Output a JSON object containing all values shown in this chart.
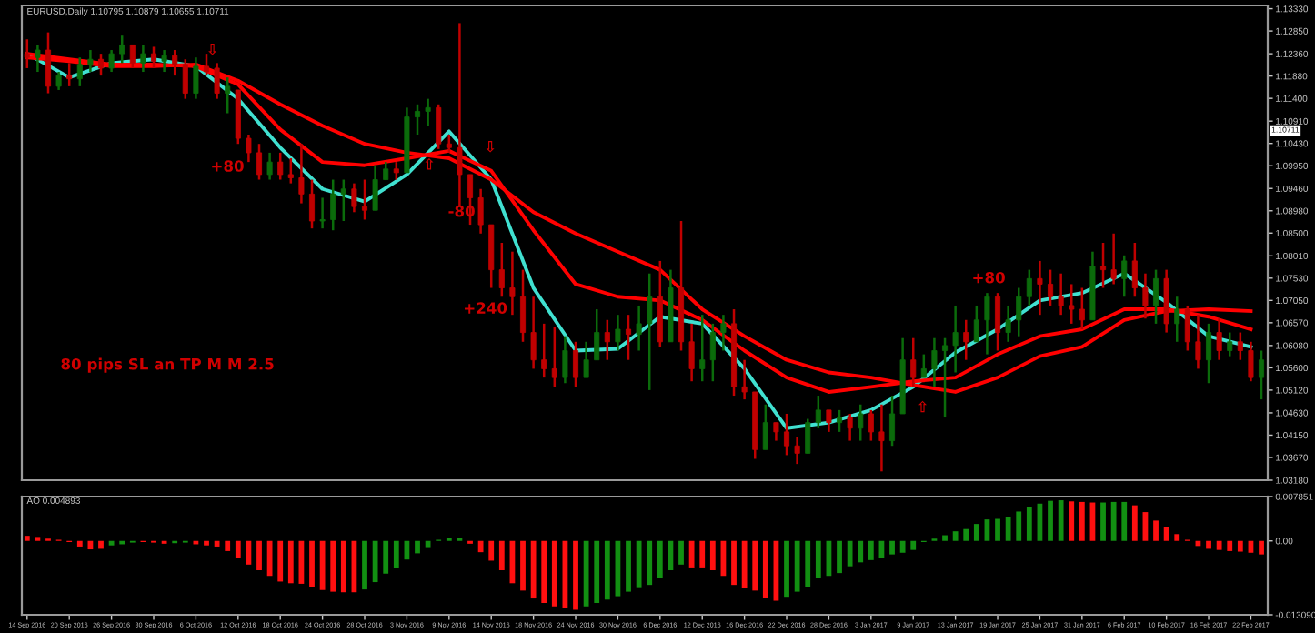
{
  "chart_data": [
    {
      "type": "candlestick",
      "title": "EURUSD,Daily 1.10795 1.10879 1.10655 1.10711",
      "categories": [
        "14 Sep 2016",
        null,
        null,
        null,
        "20 Sep 2016",
        null,
        null,
        null,
        "26 Sep 2016",
        null,
        null,
        null,
        "30 Sep 2016",
        null,
        null,
        null,
        "6 Oct 2016",
        null,
        null,
        null,
        "12 Oct 2016",
        null,
        null,
        null,
        "18 Oct 2016",
        null,
        null,
        null,
        "24 Oct 2016",
        null,
        null,
        null,
        "28 Oct 2016",
        null,
        null,
        null,
        "3 Nov 2016",
        null,
        null,
        null,
        "9 Nov 2016",
        null,
        null,
        null,
        "14 Nov 2016",
        null,
        null,
        null,
        "18 Nov 2016",
        null,
        null,
        null,
        "24 Nov 2016",
        null,
        null,
        null,
        "30 Nov 2016",
        null,
        null,
        null,
        "6 Dec 2016",
        null,
        null,
        null,
        "12 Dec 2016",
        null,
        null,
        null,
        "16 Dec 2016",
        null,
        null,
        null,
        "22 Dec 2016",
        null,
        null,
        null,
        "28 Dec 2016",
        null,
        null,
        null,
        "3 Jan 2017",
        null,
        null,
        null,
        "9 Jan 2017",
        null,
        null,
        null,
        "13 Jan 2017",
        null,
        null,
        null,
        "19 Jan 2017",
        null,
        null,
        null,
        "25 Jan 2017",
        null,
        null,
        null,
        "31 Jan 2017",
        null,
        null,
        null,
        "6 Feb 2017",
        null,
        null,
        null,
        "10 Feb 2017",
        null,
        null,
        null,
        "16 Feb 2017",
        null,
        null,
        null,
        "22 Feb 2017",
        null
      ],
      "ohlc": [
        [
          1.1236,
          1.1267,
          1.1205,
          1.1228
        ],
        [
          1.1228,
          1.1255,
          1.1197,
          1.1244
        ],
        [
          1.1244,
          1.1282,
          1.1151,
          1.1166
        ],
        [
          1.1166,
          1.1197,
          1.1158,
          1.1189
        ],
        [
          1.1189,
          1.1216,
          1.1166,
          1.1182
        ],
        [
          1.1182,
          1.1228,
          1.1166,
          1.1213
        ],
        [
          1.1213,
          1.1244,
          1.1197,
          1.1224
        ],
        [
          1.1224,
          1.1236,
          1.1189,
          1.1205
        ],
        [
          1.1205,
          1.1244,
          1.1197,
          1.1236
        ],
        [
          1.1236,
          1.1275,
          1.1216,
          1.1255
        ],
        [
          1.1255,
          1.1255,
          1.1205,
          1.1216
        ],
        [
          1.1216,
          1.1255,
          1.1197,
          1.1236
        ],
        [
          1.1236,
          1.1251,
          1.1205,
          1.122
        ],
        [
          1.122,
          1.1244,
          1.1197,
          1.1232
        ],
        [
          1.1232,
          1.1244,
          1.1189,
          1.1213
        ],
        [
          1.1213,
          1.1224,
          1.1139,
          1.1151
        ],
        [
          1.1151,
          1.1228,
          1.1139,
          1.1209
        ],
        [
          1.1209,
          1.1236,
          1.1189,
          1.1197
        ],
        [
          1.1205,
          1.1216,
          1.1139,
          1.1151
        ],
        [
          1.1151,
          1.1185,
          1.1108,
          1.1166
        ],
        [
          1.1158,
          1.1158,
          1.1042,
          1.1054
        ],
        [
          1.1054,
          1.1062,
          1.1003,
          1.1023
        ],
        [
          1.1023,
          1.1042,
          1.0965,
          1.0976
        ],
        [
          1.0976,
          1.1023,
          1.0965,
          1.1003
        ],
        [
          1.1003,
          1.1023,
          1.0965,
          1.0976
        ],
        [
          1.0976,
          1.1011,
          1.0957,
          1.0969
        ],
        [
          1.0969,
          1.1042,
          1.0914,
          1.0934
        ],
        [
          1.0934,
          1.0965,
          1.086,
          1.0876
        ],
        [
          1.0876,
          1.0926,
          1.086,
          1.0879
        ],
        [
          1.0879,
          1.0965,
          1.0856,
          1.0934
        ],
        [
          1.0934,
          1.0965,
          1.0876,
          1.0945
        ],
        [
          1.0945,
          1.0957,
          1.0895,
          1.0907
        ],
        [
          1.0907,
          1.0965,
          1.0879,
          1.0899
        ],
        [
          1.0899,
          1.0996,
          1.0899,
          1.0965
        ],
        [
          1.0965,
          1.1003,
          1.0965,
          1.0988
        ],
        [
          1.0988,
          1.1003,
          1.0965,
          1.098
        ],
        [
          1.098,
          1.112,
          1.098,
          1.11
        ],
        [
          1.11,
          1.1127,
          1.1062,
          1.1112
        ],
        [
          1.1112,
          1.1139,
          1.1081,
          1.112
        ],
        [
          1.112,
          1.1127,
          1.1031,
          1.1042
        ],
        [
          1.1042,
          1.1062,
          1.1023,
          1.1034
        ],
        [
          1.1034,
          1.1302,
          1.0907,
          1.0976
        ],
        [
          1.0976,
          1.0976,
          1.0868,
          1.0926
        ],
        [
          1.0926,
          1.0945,
          1.0849,
          1.0868
        ],
        [
          1.0868,
          1.0868,
          1.0732,
          1.0771
        ],
        [
          1.0771,
          1.0829,
          1.0713,
          1.0732
        ],
        [
          1.0732,
          1.081,
          1.0674,
          1.0713
        ],
        [
          1.0713,
          1.0771,
          1.0616,
          1.0636
        ],
        [
          1.0636,
          1.0713,
          1.0558,
          1.0577
        ],
        [
          1.0577,
          1.0655,
          1.0539,
          1.0558
        ],
        [
          1.0558,
          1.0647,
          1.0519,
          1.0539
        ],
        [
          1.0539,
          1.0628,
          1.0527,
          1.0597
        ],
        [
          1.0597,
          1.0616,
          1.0519,
          1.0539
        ],
        [
          1.0539,
          1.0616,
          1.0539,
          1.0577
        ],
        [
          1.0577,
          1.0686,
          1.0577,
          1.0636
        ],
        [
          1.0636,
          1.0663,
          1.0577,
          1.0616
        ],
        [
          1.0616,
          1.0674,
          1.0597,
          1.0643
        ],
        [
          1.0643,
          1.0674,
          1.0577,
          1.0632
        ],
        [
          1.0632,
          1.0694,
          1.0597,
          1.0655
        ],
        [
          1.0655,
          1.0763,
          1.0512,
          1.0713
        ],
        [
          1.0713,
          1.079,
          1.0605,
          1.0616
        ],
        [
          1.0616,
          1.0771,
          1.0616,
          1.0732
        ],
        [
          1.0732,
          1.0876,
          1.0597,
          1.0616
        ],
        [
          1.0616,
          1.0655,
          1.0531,
          1.0558
        ],
        [
          1.0558,
          1.0674,
          1.0531,
          1.0577
        ],
        [
          1.0577,
          1.0655,
          1.0531,
          1.0636
        ],
        [
          1.0636,
          1.0674,
          1.0597,
          1.0655
        ],
        [
          1.0655,
          1.0686,
          1.05,
          1.0519
        ],
        [
          1.0519,
          1.0577,
          1.0492,
          1.0508
        ],
        [
          1.0508,
          1.0508,
          1.0364,
          1.0384
        ],
        [
          1.0384,
          1.0481,
          1.0384,
          1.0442
        ],
        [
          1.0442,
          1.0442,
          1.0403,
          1.0422
        ],
        [
          1.0422,
          1.0461,
          1.0372,
          1.0392
        ],
        [
          1.0392,
          1.0411,
          1.0353,
          1.0376
        ],
        [
          1.0376,
          1.045,
          1.0376,
          1.0442
        ],
        [
          1.0442,
          1.05,
          1.043,
          1.0469
        ],
        [
          1.0469,
          1.0469,
          1.0422,
          1.0442
        ],
        [
          1.0442,
          1.0469,
          1.0422,
          1.0453
        ],
        [
          1.0453,
          1.0461,
          1.0403,
          1.043
        ],
        [
          1.043,
          1.0481,
          1.0403,
          1.0461
        ],
        [
          1.0461,
          1.0469,
          1.0403,
          1.0422
        ],
        [
          1.0422,
          1.0481,
          1.0337,
          1.0403
        ],
        [
          1.0403,
          1.05,
          1.0392,
          1.0461
        ],
        [
          1.0461,
          1.0624,
          1.0461,
          1.0577
        ],
        [
          1.0577,
          1.0624,
          1.0519,
          1.0539
        ],
        [
          1.0539,
          1.0589,
          1.0539,
          1.0558
        ],
        [
          1.0558,
          1.0624,
          1.0519,
          1.0597
        ],
        [
          1.0597,
          1.0624,
          1.0453,
          1.0608
        ],
        [
          1.0608,
          1.0694,
          1.055,
          1.0636
        ],
        [
          1.0636,
          1.0663,
          1.0577,
          1.0616
        ],
        [
          1.0616,
          1.0694,
          1.0616,
          1.0663
        ],
        [
          1.0663,
          1.0721,
          1.0589,
          1.0713
        ],
        [
          1.0713,
          1.0721,
          1.0597,
          1.0636
        ],
        [
          1.0636,
          1.0694,
          1.0616,
          1.0663
        ],
        [
          1.0663,
          1.0732,
          1.0628,
          1.0713
        ],
        [
          1.0713,
          1.0771,
          1.0694,
          1.0752
        ],
        [
          1.0752,
          1.079,
          1.0674,
          1.074
        ],
        [
          1.074,
          1.0771,
          1.0694,
          1.0713
        ],
        [
          1.0713,
          1.0763,
          1.0674,
          1.0694
        ],
        [
          1.0694,
          1.074,
          1.0655,
          1.0686
        ],
        [
          1.0686,
          1.0732,
          1.0643,
          1.0663
        ],
        [
          1.0663,
          1.081,
          1.0663,
          1.0779
        ],
        [
          1.0779,
          1.0829,
          1.0732,
          1.0771
        ],
        [
          1.0771,
          1.0849,
          1.074,
          1.0752
        ],
        [
          1.0752,
          1.0802,
          1.0713,
          1.079
        ],
        [
          1.079,
          1.0829,
          1.0713,
          1.0732
        ],
        [
          1.0732,
          1.0763,
          1.0666,
          1.0694
        ],
        [
          1.0694,
          1.0771,
          1.0655,
          1.0752
        ],
        [
          1.0752,
          1.0771,
          1.0636,
          1.0655
        ],
        [
          1.0655,
          1.0713,
          1.0616,
          1.0686
        ],
        [
          1.0686,
          1.0694,
          1.0597,
          1.0616
        ],
        [
          1.0616,
          1.0674,
          1.0558,
          1.0577
        ],
        [
          1.0577,
          1.0655,
          1.0527,
          1.0636
        ],
        [
          1.0636,
          1.0666,
          1.0577,
          1.0597
        ],
        [
          1.0597,
          1.0636,
          1.0585,
          1.0616
        ],
        [
          1.0616,
          1.0636,
          1.0577,
          1.0597
        ],
        [
          1.0597,
          1.0616,
          1.0531,
          1.0539
        ],
        [
          1.0539,
          1.0597,
          1.0492,
          1.0577
        ]
      ],
      "colors": [
        "#c00000",
        "#0b6b0b",
        "#c00000",
        "#0b6b0b",
        "#c00000",
        "#0b6b0b",
        "#0b6b0b",
        "#c00000",
        "#0b6b0b",
        "#0b6b0b",
        "#c00000",
        "#0b6b0b",
        "#c00000",
        "#0b6b0b",
        "#c00000",
        "#c00000",
        "#0b6b0b",
        "#c00000",
        "#c00000",
        "#0b6b0b",
        "#c00000",
        "#c00000",
        "#c00000",
        "#0b6b0b",
        "#c00000",
        "#c00000",
        "#c00000",
        "#c00000",
        "#0b6b0b",
        "#0b6b0b",
        "#0b6b0b",
        "#c00000",
        "#c00000",
        "#0b6b0b",
        "#0b6b0b",
        "#c00000",
        "#0b6b0b",
        "#0b6b0b",
        "#0b6b0b",
        "#c00000",
        "#c00000",
        "#c00000",
        "#c00000",
        "#c00000",
        "#c00000",
        "#c00000",
        "#c00000",
        "#c00000",
        "#c00000",
        "#c00000",
        "#c00000",
        "#0b6b0b",
        "#c00000",
        "#0b6b0b",
        "#0b6b0b",
        "#c00000",
        "#0b6b0b",
        "#c00000",
        "#0b6b0b",
        "#0b6b0b",
        "#c00000",
        "#0b6b0b",
        "#c00000",
        "#c00000",
        "#0b6b0b",
        "#0b6b0b",
        "#0b6b0b",
        "#c00000",
        "#c00000",
        "#c00000",
        "#0b6b0b",
        "#c00000",
        "#c00000",
        "#c00000",
        "#0b6b0b",
        "#0b6b0b",
        "#c00000",
        "#0b6b0b",
        "#c00000",
        "#0b6b0b",
        "#c00000",
        "#c00000",
        "#0b6b0b",
        "#0b6b0b",
        "#c00000",
        "#0b6b0b",
        "#0b6b0b",
        "#0b6b0b",
        "#0b6b0b",
        "#c00000",
        "#0b6b0b",
        "#0b6b0b",
        "#c00000",
        "#0b6b0b",
        "#0b6b0b",
        "#0b6b0b",
        "#c00000",
        "#c00000",
        "#c00000",
        "#c00000",
        "#c00000",
        "#0b6b0b",
        "#c00000",
        "#c00000",
        "#0b6b0b",
        "#c00000",
        "#c00000",
        "#0b6b0b",
        "#c00000",
        "#0b6b0b",
        "#c00000",
        "#c00000",
        "#0b6b0b",
        "#c00000",
        "#0b6b0b",
        "#c00000",
        "#c00000",
        "#0b6b0b"
      ],
      "series": [
        {
          "type": "line",
          "color": "#40e0d0",
          "x": [
            "14 Sep 2016",
            "20 Sep 2016",
            "26 Sep 2016",
            "30 Sep 2016",
            "6 Oct 2016",
            "12 Oct 2016",
            "18 Oct 2016",
            "24 Oct 2016",
            "28 Oct 2016",
            "3 Nov 2016",
            "9 Nov 2016",
            "14 Nov 2016",
            "18 Nov 2016",
            "24 Nov 2016",
            "30 Nov 2016",
            "6 Dec 2016",
            "12 Dec 2016",
            "16 Dec 2016",
            "22 Dec 2016",
            "28 Dec 2016",
            "3 Jan 2017",
            "9 Jan 2017",
            "13 Jan 2017",
            "19 Jan 2017",
            "25 Jan 2017",
            "31 Jan 2017",
            "6 Feb 2017",
            "10 Feb 2017",
            "16 Feb 2017",
            "22 Feb 2017"
          ],
          "values": [
            1.1236,
            1.1185,
            1.1216,
            1.1224,
            1.1209,
            1.1139,
            1.1034,
            1.0945,
            1.0918,
            1.0976,
            1.1069,
            1.0965,
            1.0732,
            1.0597,
            1.0601,
            1.067,
            1.0655,
            1.0558,
            1.043,
            1.0442,
            1.0469,
            1.0519,
            1.0593,
            1.0643,
            1.0705,
            1.0721,
            1.0763,
            1.0701,
            1.0628,
            1.0605
          ]
        },
        {
          "type": "line",
          "color": "#ff0000",
          "x": [
            "14 Sep 2016",
            "20 Sep 2016",
            "26 Sep 2016",
            "30 Sep 2016",
            "6 Oct 2016",
            "12 Oct 2016",
            "18 Oct 2016",
            "24 Oct 2016",
            "28 Oct 2016",
            "3 Nov 2016",
            "9 Nov 2016",
            "14 Nov 2016",
            "18 Nov 2016",
            "24 Nov 2016",
            "30 Nov 2016",
            "6 Dec 2016",
            "12 Dec 2016",
            "16 Dec 2016",
            "22 Dec 2016",
            "28 Dec 2016",
            "3 Jan 2017",
            "9 Jan 2017",
            "13 Jan 2017",
            "19 Jan 2017",
            "25 Jan 2017",
            "31 Jan 2017",
            "6 Feb 2017",
            "10 Feb 2017",
            "16 Feb 2017",
            "22 Feb 2017"
          ],
          "values": [
            1.1236,
            1.1224,
            1.1213,
            1.1213,
            1.1209,
            1.117,
            1.1073,
            1.1003,
            1.0996,
            1.1011,
            1.1027,
            1.0984,
            1.0856,
            1.074,
            1.0713,
            1.0705,
            1.0663,
            1.0597,
            1.0539,
            1.0508,
            1.0519,
            1.0531,
            1.0539,
            1.0589,
            1.0628,
            1.0643,
            1.0686,
            1.0686,
            1.067,
            1.0643
          ]
        },
        {
          "type": "line",
          "color": "#ff0000",
          "x": [
            "14 Sep 2016",
            "20 Sep 2016",
            "26 Sep 2016",
            "30 Sep 2016",
            "6 Oct 2016",
            "12 Oct 2016",
            "18 Oct 2016",
            "24 Oct 2016",
            "28 Oct 2016",
            "3 Nov 2016",
            "9 Nov 2016",
            "14 Nov 2016",
            "18 Nov 2016",
            "24 Nov 2016",
            "30 Nov 2016",
            "6 Dec 2016",
            "12 Dec 2016",
            "16 Dec 2016",
            "22 Dec 2016",
            "28 Dec 2016",
            "3 Jan 2017",
            "9 Jan 2017",
            "13 Jan 2017",
            "19 Jan 2017",
            "25 Jan 2017",
            "31 Jan 2017",
            "6 Feb 2017",
            "10 Feb 2017",
            "16 Feb 2017",
            "22 Feb 2017"
          ],
          "values": [
            1.1228,
            1.122,
            1.1209,
            1.1209,
            1.1213,
            1.1178,
            1.1127,
            1.1081,
            1.1042,
            1.1023,
            1.1011,
            1.0965,
            1.0895,
            1.0849,
            1.081,
            1.0771,
            1.0686,
            1.0628,
            1.0577,
            1.055,
            1.0539,
            1.0523,
            1.0508,
            1.0539,
            1.0585,
            1.0605,
            1.0663,
            1.0682,
            1.0686,
            1.0682
          ]
        }
      ],
      "annotations": [
        "⇩",
        "+80",
        "⇧",
        "-80",
        "⇩",
        "+240",
        "⇧",
        "+80",
        "80 pips SL an TP M M 2.5",
        "1.10711"
      ],
      "ylim": [
        1.0318,
        1.134
      ],
      "yticks": [
        {
          "value": 1.1333,
          "label": "1.13330"
        },
        {
          "value": 1.1285,
          "label": "1.12850"
        },
        {
          "value": 1.1236,
          "label": "1.12360"
        },
        {
          "value": 1.1188,
          "label": "1.11880"
        },
        {
          "value": 1.114,
          "label": "1.11400"
        },
        {
          "value": 1.1091,
          "label": "1.10910"
        },
        {
          "value": 1.1043,
          "label": "1.10430"
        },
        {
          "value": 1.0995,
          "label": "1.09950"
        },
        {
          "value": 1.0946,
          "label": "1.09460"
        },
        {
          "value": 1.0898,
          "label": "1.08980"
        },
        {
          "value": 1.085,
          "label": "1.08500"
        },
        {
          "value": 1.0801,
          "label": "1.08010"
        },
        {
          "value": 1.0753,
          "label": "1.07530"
        },
        {
          "value": 1.0705,
          "label": "1.07050"
        },
        {
          "value": 1.0657,
          "label": "1.06570"
        },
        {
          "value": 1.0608,
          "label": "1.06080"
        },
        {
          "value": 1.056,
          "label": "1.05600"
        },
        {
          "value": 1.0512,
          "label": "1.05120"
        },
        {
          "value": 1.0463,
          "label": "1.04630"
        },
        {
          "value": 1.0415,
          "label": "1.04150"
        },
        {
          "value": 1.0367,
          "label": "1.03670"
        },
        {
          "value": 1.0318,
          "label": "1.03180"
        }
      ],
      "tick_labels": "y"
    },
    {
      "type": "bar",
      "title": "AO 0.004893",
      "categories": [
        "14 Sep 2016",
        null,
        null,
        null,
        "20 Sep 2016",
        null,
        null,
        null,
        "26 Sep 2016",
        null,
        null,
        null,
        "30 Sep 2016",
        null,
        null,
        null,
        "6 Oct 2016",
        null,
        null,
        null,
        "12 Oct 2016",
        null,
        null,
        null,
        "18 Oct 2016",
        null,
        null,
        null,
        "24 Oct 2016",
        null,
        null,
        null,
        "28 Oct 2016",
        null,
        null,
        null,
        "3 Nov 2016",
        null,
        null,
        null,
        "9 Nov 2016",
        null,
        null,
        null,
        "14 Nov 2016",
        null,
        null,
        null,
        "18 Nov 2016",
        null,
        null,
        null,
        "24 Nov 2016",
        null,
        null,
        null,
        "30 Nov 2016",
        null,
        null,
        null,
        "6 Dec 2016",
        null,
        null,
        null,
        "12 Dec 2016",
        null,
        null,
        null,
        "16 Dec 2016",
        null,
        null,
        null,
        "22 Dec 2016",
        null,
        null,
        null,
        "28 Dec 2016",
        null,
        null,
        null,
        "3 Jan 2017",
        null,
        null,
        null,
        "9 Jan 2017",
        null,
        null,
        null,
        "13 Jan 2017",
        null,
        null,
        null,
        "19 Jan 2017",
        null,
        null,
        null,
        "25 Jan 2017",
        null,
        null,
        null,
        "31 Jan 2017",
        null,
        null,
        null,
        "6 Feb 2017",
        null,
        null,
        null,
        "10 Feb 2017",
        null,
        null,
        null,
        "16 Feb 2017",
        null,
        null,
        null,
        "22 Feb 2017",
        null
      ],
      "values": [
        0.0009,
        0.0007,
        0.0004,
        0.0002,
        -0.0002,
        -0.001,
        -0.0015,
        -0.0014,
        -0.0008,
        -0.0006,
        -0.0003,
        -0.0002,
        -0.0003,
        -0.0005,
        -0.0004,
        -0.0003,
        -0.0006,
        -0.0008,
        -0.001,
        -0.0018,
        -0.0031,
        -0.0042,
        -0.0052,
        -0.0062,
        -0.0072,
        -0.0075,
        -0.0076,
        -0.0081,
        -0.0087,
        -0.009,
        -0.0091,
        -0.0091,
        -0.0086,
        -0.0073,
        -0.0058,
        -0.0048,
        -0.0033,
        -0.0022,
        -0.0011,
        0.0002,
        0.0005,
        0.0006,
        -0.0005,
        -0.002,
        -0.0035,
        -0.0052,
        -0.0075,
        -0.0088,
        -0.0102,
        -0.011,
        -0.0116,
        -0.0118,
        -0.0122,
        -0.0116,
        -0.011,
        -0.0104,
        -0.0098,
        -0.009,
        -0.0082,
        -0.0078,
        -0.0066,
        -0.0052,
        -0.0042,
        -0.0047,
        -0.0047,
        -0.0052,
        -0.0062,
        -0.0078,
        -0.0083,
        -0.0088,
        -0.0101,
        -0.0106,
        -0.0099,
        -0.009,
        -0.0081,
        -0.0066,
        -0.0062,
        -0.0057,
        -0.0045,
        -0.0038,
        -0.0034,
        -0.0031,
        -0.0024,
        -0.0021,
        -0.0016,
        -0.0002,
        0.0004,
        0.001,
        0.0017,
        0.0021,
        0.003,
        0.0038,
        0.0039,
        0.0042,
        0.0052,
        0.006,
        0.0066,
        0.0071,
        0.0072,
        0.007,
        0.0069,
        0.0068,
        0.0068,
        0.0069,
        0.0069,
        0.0063,
        0.0051,
        0.0036,
        0.0025,
        0.0012,
        0.0002,
        -0.0009,
        -0.0014,
        -0.0016,
        -0.0018,
        -0.0019,
        -0.0021,
        -0.0024
      ],
      "colors": [
        "#ff1010",
        "#ff1010",
        "#ff1010",
        "#ff1010",
        "#ff1010",
        "#ff1010",
        "#ff1010",
        "#ff1010",
        "#129012",
        "#129012",
        "#129012",
        "#ff1010",
        "#ff1010",
        "#ff1010",
        "#129012",
        "#129012",
        "#ff1010",
        "#ff1010",
        "#ff1010",
        "#ff1010",
        "#ff1010",
        "#ff1010",
        "#ff1010",
        "#ff1010",
        "#ff1010",
        "#ff1010",
        "#ff1010",
        "#ff1010",
        "#ff1010",
        "#ff1010",
        "#ff1010",
        "#ff1010",
        "#129012",
        "#129012",
        "#129012",
        "#129012",
        "#129012",
        "#129012",
        "#129012",
        "#129012",
        "#129012",
        "#129012",
        "#ff1010",
        "#ff1010",
        "#ff1010",
        "#ff1010",
        "#ff1010",
        "#ff1010",
        "#ff1010",
        "#ff1010",
        "#ff1010",
        "#ff1010",
        "#ff1010",
        "#129012",
        "#129012",
        "#129012",
        "#129012",
        "#129012",
        "#129012",
        "#129012",
        "#129012",
        "#129012",
        "#129012",
        "#ff1010",
        "#ff1010",
        "#ff1010",
        "#ff1010",
        "#ff1010",
        "#ff1010",
        "#ff1010",
        "#ff1010",
        "#ff1010",
        "#129012",
        "#129012",
        "#129012",
        "#129012",
        "#129012",
        "#129012",
        "#129012",
        "#129012",
        "#129012",
        "#129012",
        "#129012",
        "#129012",
        "#129012",
        "#129012",
        "#129012",
        "#129012",
        "#129012",
        "#129012",
        "#129012",
        "#129012",
        "#129012",
        "#129012",
        "#129012",
        "#129012",
        "#129012",
        "#129012",
        "#129012",
        "#ff1010",
        "#ff1010",
        "#ff1010",
        "#129012",
        "#129012",
        "#129012",
        "#ff1010",
        "#ff1010",
        "#ff1010",
        "#ff1010",
        "#ff1010",
        "#ff1010",
        "#ff1010",
        "#ff1010",
        "#ff1010",
        "#ff1010",
        "#ff1010",
        "#ff1010",
        "#ff1010"
      ],
      "ylim": [
        -0.01309,
        0.007851
      ],
      "yticks": [
        0.007851,
        {
          "value": 0,
          "label": "0.00"
        },
        {
          "value": -0.01309,
          "label": "-0.013090"
        }
      ]
    }
  ]
}
